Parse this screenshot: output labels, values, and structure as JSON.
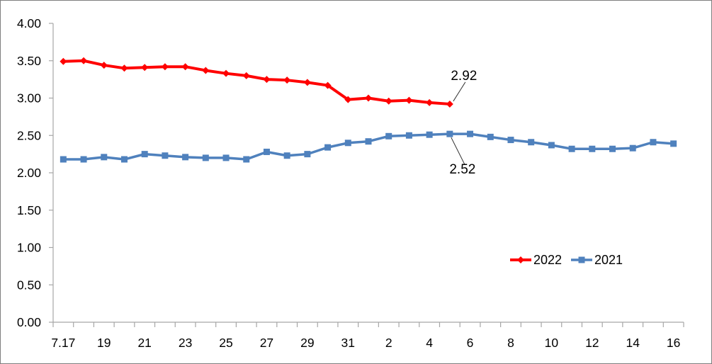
{
  "figure": {
    "background": "#FFFFFF",
    "border_color": "#7F7F7F"
  },
  "chart_data": {
    "type": "line",
    "title": "",
    "xlabel": "",
    "ylabel": "",
    "grid": "off",
    "ylim": [
      0.0,
      4.0
    ],
    "y_tick_step": 0.5,
    "y_tick_labels": [
      "4.00",
      "3.50",
      "3.00",
      "2.50",
      "2.00",
      "1.50",
      "1.00",
      "0.50",
      "0.00"
    ],
    "n_categories": 31,
    "x_tick_labels": [
      "7.17",
      "19",
      "21",
      "23",
      "25",
      "27",
      "29",
      "31",
      "2",
      "4",
      "6",
      "8",
      "10",
      "12",
      "14",
      "16"
    ],
    "x_tick_label_indices": [
      0,
      2,
      4,
      6,
      8,
      10,
      12,
      14,
      16,
      18,
      20,
      22,
      24,
      26,
      28,
      30
    ],
    "axis_color": "#A6A6A6",
    "text_color": "#000000",
    "annotation_line_color": "#333333",
    "legend_position": "inside-right-middle",
    "series": [
      {
        "name": "2022",
        "color": "#FF0000",
        "marker": "diamond",
        "values": [
          3.49,
          3.5,
          3.44,
          3.4,
          3.41,
          3.42,
          3.42,
          3.37,
          3.33,
          3.3,
          3.25,
          3.24,
          3.21,
          3.17,
          2.98,
          3.0,
          2.96,
          2.97,
          2.94,
          2.92
        ]
      },
      {
        "name": "2021",
        "color": "#4F81BD",
        "marker": "square",
        "values": [
          2.18,
          2.18,
          2.21,
          2.18,
          2.25,
          2.23,
          2.21,
          2.2,
          2.2,
          2.18,
          2.28,
          2.23,
          2.25,
          2.34,
          2.4,
          2.42,
          2.49,
          2.5,
          2.51,
          2.52,
          2.52,
          2.48,
          2.44,
          2.41,
          2.37,
          2.32,
          2.32,
          2.32,
          2.33,
          2.41,
          2.39
        ]
      }
    ],
    "annotations": [
      {
        "text": "2.92",
        "series": "2022",
        "point_index": 19,
        "placement": "above"
      },
      {
        "text": "2.52",
        "series": "2021",
        "point_index": 19,
        "placement": "below"
      }
    ]
  }
}
